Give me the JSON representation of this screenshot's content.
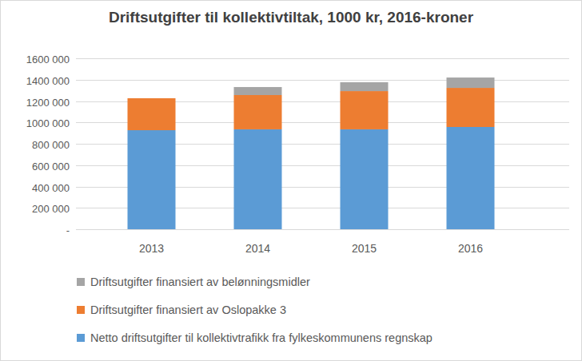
{
  "chart_data": {
    "type": "bar",
    "title": "Driftsutgifter til kollektivtiltak, 1000 kr, 2016-kroner",
    "categories": [
      "2013",
      "2014",
      "2015",
      "2016"
    ],
    "stacked": true,
    "grid": true,
    "legend": "bottom",
    "ylim": [
      0,
      1600000
    ],
    "yticks": [
      {
        "value": 0,
        "label": "-"
      },
      {
        "value": 200000,
        "label": "200 000"
      },
      {
        "value": 400000,
        "label": "400 000"
      },
      {
        "value": 600000,
        "label": "600 000"
      },
      {
        "value": 800000,
        "label": "800 000"
      },
      {
        "value": 1000000,
        "label": "1000 000"
      },
      {
        "value": 1200000,
        "label": "1200 000"
      },
      {
        "value": 1400000,
        "label": "1400 000"
      },
      {
        "value": 1600000,
        "label": "1600 000"
      }
    ],
    "series": [
      {
        "name": "Netto driftsutgifter til kollektivtrafikk fra fylkeskommunens regnskap",
        "color": "#5b9bd5",
        "values": [
          927000,
          935000,
          935000,
          957000
        ]
      },
      {
        "name": "Driftsutgifter finansiert av Oslopakke 3",
        "color": "#ed7d31",
        "values": [
          299000,
          321000,
          358000,
          366000
        ]
      },
      {
        "name": "Driftsutgifter finansiert av belønningsmidler",
        "color": "#a5a5a5",
        "values": [
          0,
          75000,
          83000,
          97000
        ]
      }
    ]
  }
}
